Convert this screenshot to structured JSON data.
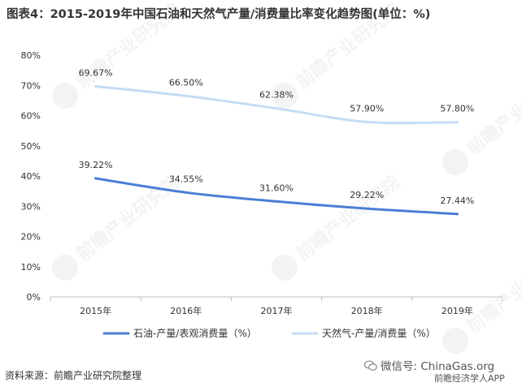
{
  "title": "图表4：2015-2019年中国石油和天然气产量/消费量比率变化趋势图(单位：%)",
  "source": "资料来源：前瞻产业研究院整理",
  "watermarks": {
    "center": "前瞻产业研究院",
    "wechat": "微信号: ChinaGas.org",
    "app": "前瞻经济学人APP"
  },
  "chart_data": {
    "type": "line",
    "x": [
      "2015年",
      "2016年",
      "2017年",
      "2018年",
      "2019年"
    ],
    "ylim": [
      0,
      80
    ],
    "yticks": [
      "0%",
      "10%",
      "20%",
      "30%",
      "40%",
      "50%",
      "60%",
      "70%",
      "80%"
    ],
    "grid": false,
    "legend_position": "bottom",
    "series": [
      {
        "name": "石油-产量/表观消费量（%）",
        "values": [
          39.22,
          34.55,
          31.6,
          29.22,
          27.44
        ],
        "labels": [
          "39.22%",
          "34.55%",
          "31.60%",
          "29.22%",
          "27.44%"
        ],
        "color": "#4a7fd6"
      },
      {
        "name": "天然气-产量/消费量（%）",
        "values": [
          69.67,
          66.5,
          62.38,
          57.9,
          57.8
        ],
        "labels": [
          "69.67%",
          "66.50%",
          "62.38%",
          "57.90%",
          "57.80%"
        ],
        "color": "#c6dcf4"
      }
    ]
  }
}
